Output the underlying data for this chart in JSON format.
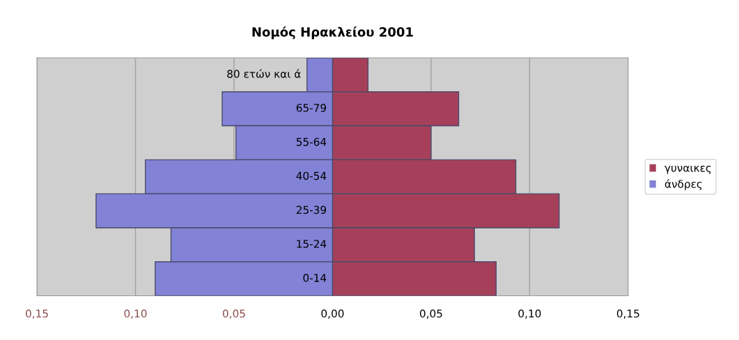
{
  "chart_data": {
    "type": "bar",
    "orientation": "horizontal",
    "title": "Νομός Ηρακλείου 2001",
    "categories": [
      "80 ετών και ά",
      "65-79",
      "55-64",
      "40-54",
      "25-39",
      "15-24",
      "0-14"
    ],
    "series": [
      {
        "name": "γυναικες",
        "color": "#a6405a",
        "values": [
          0.018,
          0.064,
          0.05,
          0.093,
          0.115,
          0.072,
          0.083
        ]
      },
      {
        "name": "άνδρες",
        "color": "#8282d6",
        "values": [
          -0.013,
          -0.056,
          -0.049,
          -0.095,
          -0.12,
          -0.082,
          -0.09
        ]
      }
    ],
    "xlim": [
      -0.15,
      0.15
    ],
    "xticks": [
      {
        "value": -0.15,
        "label": "0,15"
      },
      {
        "value": -0.1,
        "label": "0,10"
      },
      {
        "value": -0.05,
        "label": "0,05"
      },
      {
        "value": 0,
        "label": "0,00"
      },
      {
        "value": 0.05,
        "label": "0,05"
      },
      {
        "value": 0.1,
        "label": "0,10"
      },
      {
        "value": 0.15,
        "label": "0,15"
      }
    ],
    "stacked": true,
    "grid": "x",
    "legend": "right"
  }
}
